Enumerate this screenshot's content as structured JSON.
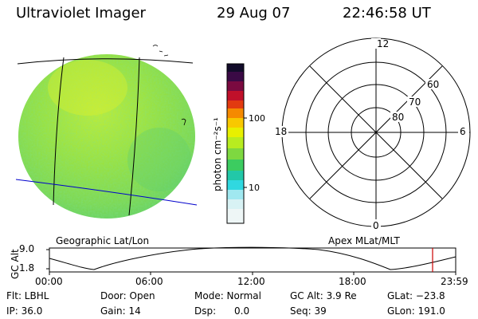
{
  "header": {
    "title": "Ultraviolet Imager",
    "date": "29 Aug 07",
    "time": "22:46:58 UT"
  },
  "colorbar": {
    "unit_label": "photon cm⁻²s⁻¹",
    "tick_100": "100",
    "tick_10": "10"
  },
  "polar": {
    "label_top": "12",
    "label_left": "18",
    "label_right": "6",
    "label_bottom": "0",
    "lat_60": "60",
    "lat_70": "70",
    "lat_80": "80"
  },
  "labels": {
    "geo": "Geographic Lat/Lon",
    "apex": "Apex MLat/MLT"
  },
  "alt_plot": {
    "axis_label": "GC Alt",
    "ymax": "9.0",
    "ymin": "1.8",
    "ticks": [
      "00:00",
      "06:00",
      "12:00",
      "18:00",
      "23:59"
    ]
  },
  "status": {
    "flt": "Flt: LBHL",
    "ip": "IP: 36.0",
    "door": "Door: Open",
    "gain": "Gain: 14",
    "mode": "Mode: Normal",
    "dsp": "Dsp:      0.0",
    "gcalt": "GC Alt: 3.9 Re",
    "seq": "Seq: 39",
    "glat": "GLat: −23.8",
    "glon": "GLon: 191.0"
  },
  "colors": {
    "disk_base": "#8ddc2e",
    "meridian_line": "#000000",
    "equator_line": "#0000cc",
    "marker_line": "#cc0000"
  }
}
